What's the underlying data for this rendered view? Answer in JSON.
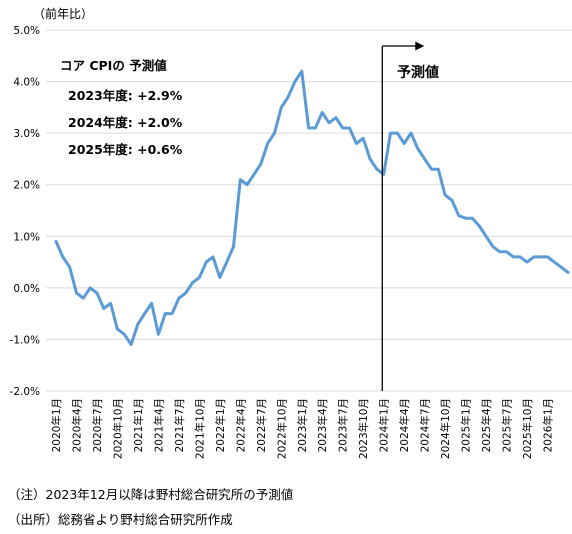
{
  "chart_data": {
    "type": "line",
    "ylabel": "（前年比）",
    "y_unit": "%",
    "ylim": [
      -2.0,
      5.0
    ],
    "yticks": [
      "5.0%",
      "4.0%",
      "3.0%",
      "2.0%",
      "1.0%",
      "0.0%",
      "-1.0%",
      "-2.0%"
    ],
    "ytick_values": [
      5.0,
      4.0,
      3.0,
      2.0,
      1.0,
      0.0,
      -1.0,
      -2.0
    ],
    "xticks": [
      "2020年1月",
      "2020年4月",
      "2020年7月",
      "2020年10月",
      "2021年1月",
      "2021年4月",
      "2021年7月",
      "2021年10月",
      "2022年1月",
      "2022年4月",
      "2022年7月",
      "2022年10月",
      "2023年1月",
      "2023年4月",
      "2023年7月",
      "2023年10月",
      "2024年1月",
      "2024年4月",
      "2024年7月",
      "2024年10月",
      "2025年1月",
      "2025年4月",
      "2025年7月",
      "2025年10月",
      "2026年1月"
    ],
    "x_start": "2020年1月",
    "x_end": "2026年3月",
    "grid": true,
    "series_color": "#5b9bd5",
    "values": [
      0.9,
      0.6,
      0.4,
      -0.1,
      -0.2,
      0.0,
      -0.1,
      -0.4,
      -0.3,
      -0.8,
      -0.9,
      -1.1,
      -0.7,
      -0.5,
      -0.3,
      -0.9,
      -0.5,
      -0.5,
      -0.2,
      -0.1,
      0.1,
      0.2,
      0.5,
      0.6,
      0.2,
      0.5,
      0.8,
      2.1,
      2.0,
      2.2,
      2.4,
      2.8,
      3.0,
      3.5,
      3.7,
      4.0,
      4.2,
      3.1,
      3.1,
      3.4,
      3.2,
      3.3,
      3.1,
      3.1,
      2.8,
      2.9,
      2.5,
      2.3,
      2.2,
      3.0,
      3.0,
      2.8,
      3.0,
      2.7,
      2.5,
      2.3,
      2.3,
      1.8,
      1.7,
      1.4,
      1.35,
      1.35,
      1.2,
      1.0,
      0.8,
      0.7,
      0.7,
      0.6,
      0.6,
      0.5,
      0.6,
      0.6,
      0.6,
      0.5,
      0.4,
      0.3
    ],
    "forecast_start": "2023年12月",
    "forecast_label": "予測値",
    "annotation": {
      "title": "コア CPIの 予測値",
      "lines": [
        "2023年度: +2.9%",
        "2024年度: +2.0%",
        "2025年度: +0.6%"
      ]
    }
  },
  "notes": {
    "note1": "（注）2023年12月以降は野村総合研究所の予測値",
    "note2": "（出所）総務省より野村総合研究所作成"
  }
}
